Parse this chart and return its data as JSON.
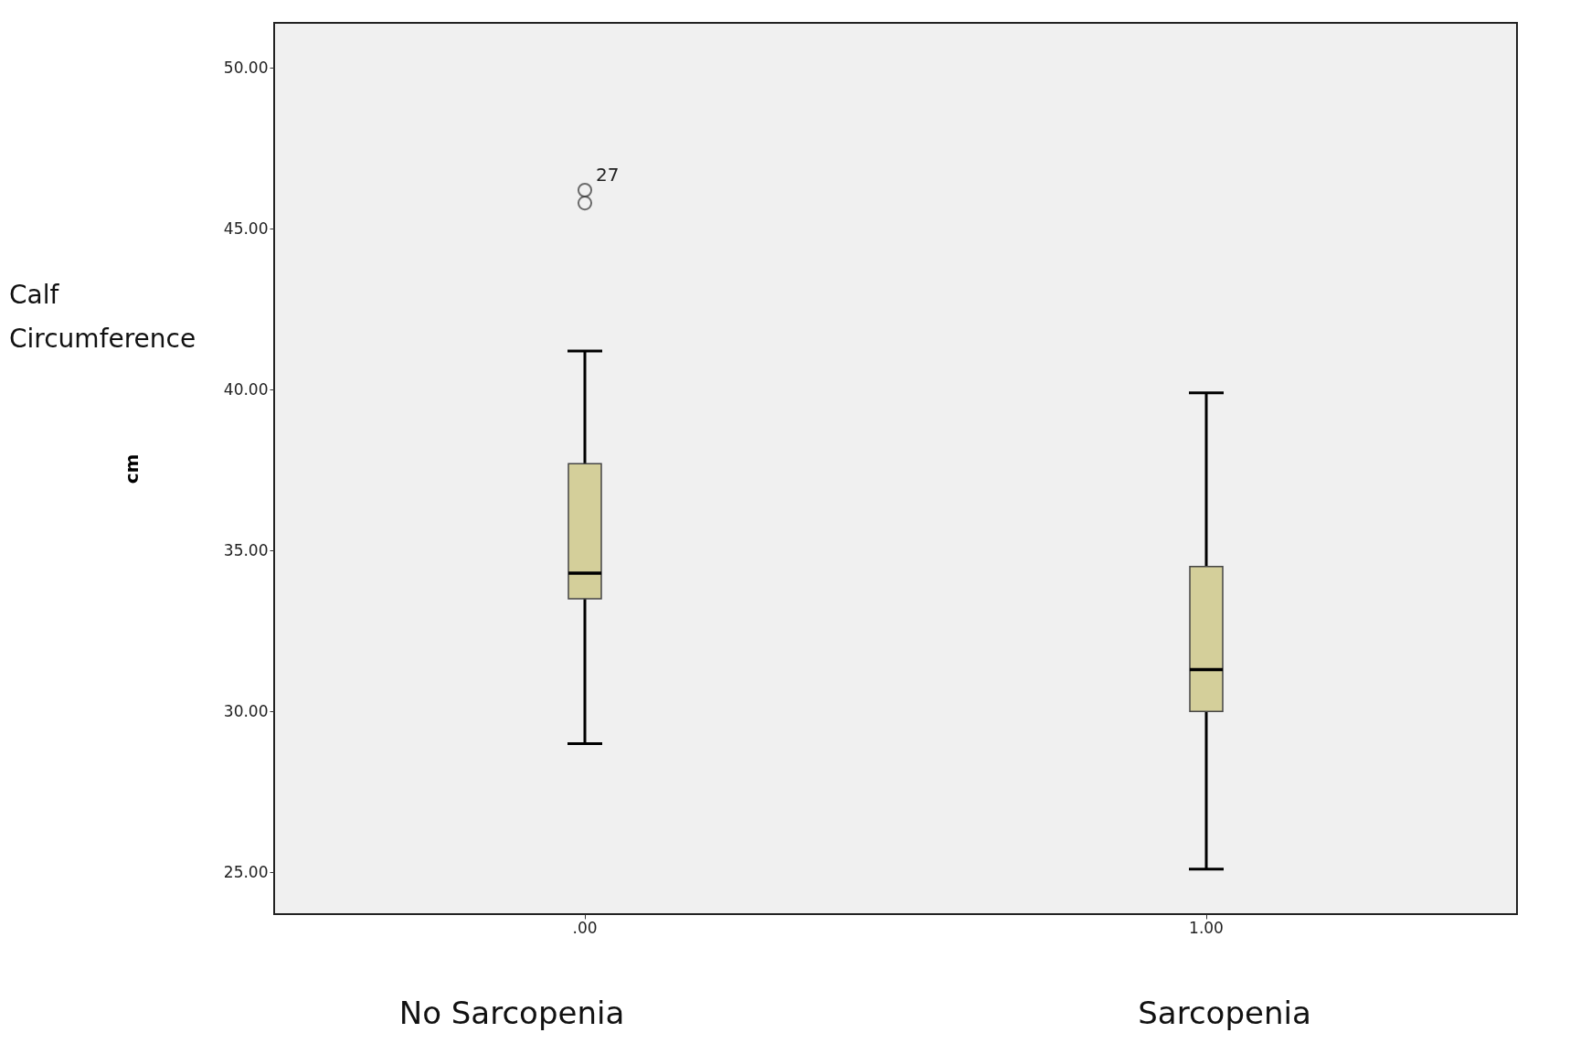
{
  "chart_data": {
    "type": "box",
    "ylabel": "cm",
    "categories": [
      ".00",
      "1.00"
    ],
    "boxes": [
      {
        "low": 29.0,
        "q1": 33.5,
        "median": 34.3,
        "q3": 37.7,
        "high": 41.2,
        "outliers": [
          45.8,
          46.2
        ]
      },
      {
        "low": 25.1,
        "q1": 30.0,
        "median": 31.3,
        "q3": 34.5,
        "high": 39.9
      }
    ],
    "color": "#d4cf9a",
    "ylim": [
      23.7,
      51.4
    ],
    "yticks": [
      {
        "value": 25,
        "label": "25.00"
      },
      {
        "value": 30,
        "label": "30.00"
      },
      {
        "value": 35,
        "label": "35.00"
      },
      {
        "value": 40,
        "label": "40.00"
      },
      {
        "value": 45,
        "label": "45.00"
      },
      {
        "value": 50,
        "label": "50.00"
      }
    ],
    "annotations": [
      "Calf Circumference",
      "27",
      "No  Sarcopenia",
      "Sarcopenia"
    ],
    "grid": false
  }
}
